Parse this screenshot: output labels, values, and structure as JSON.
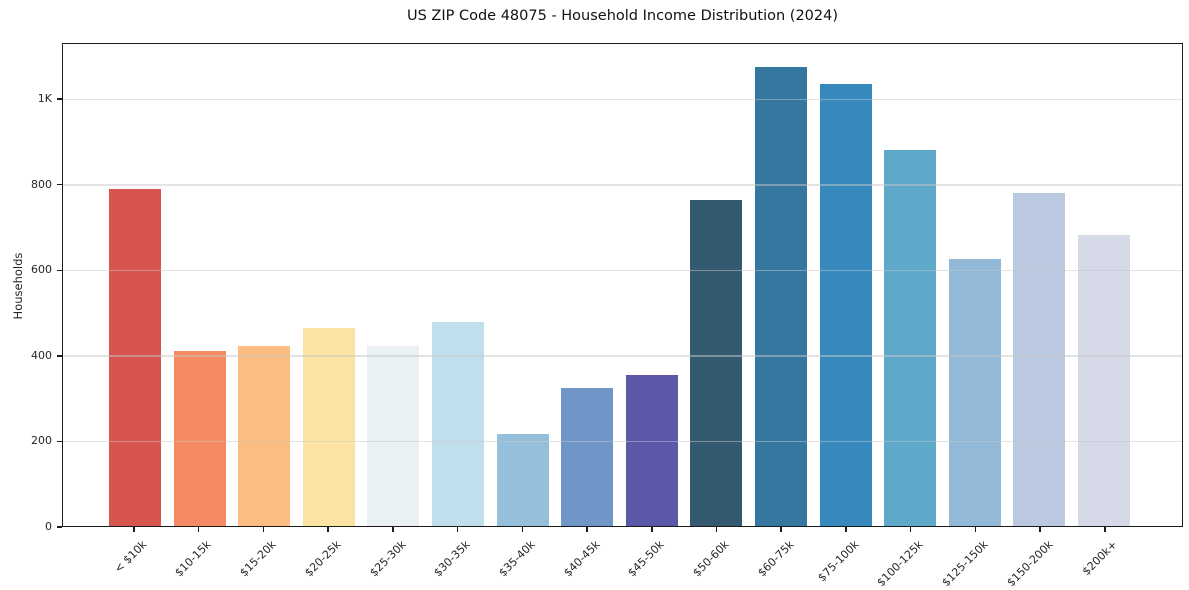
{
  "title": "US ZIP Code 48075 - Household Income Distribution (2024)",
  "chart_data": {
    "type": "bar",
    "title": "US ZIP Code 48075 - Household Income Distribution (2024)",
    "xlabel": "",
    "ylabel": "Households",
    "categories": [
      "< $10k",
      "$10-15k",
      "$15-20k",
      "$20-25k",
      "$25-30k",
      "$30-35k",
      "$35-40k",
      "$40-45k",
      "$45-50k",
      "$50-60k",
      "$60-75k",
      "$75-100k",
      "$100-125k",
      "$125-150k",
      "$150-200k",
      "$200k+"
    ],
    "values": [
      787,
      408,
      420,
      463,
      420,
      476,
      215,
      322,
      353,
      762,
      1072,
      1033,
      878,
      624,
      778,
      680
    ],
    "bar_colors": [
      "#d8544e",
      "#f58a62",
      "#fcbd80",
      "#fde3a3",
      "#e9f1f5",
      "#c0dfec",
      "#96bfdc",
      "#7095c7",
      "#5b57a9",
      "#345a71",
      "#35779f",
      "#3789bd",
      "#5ea8ca",
      "#93b9d9",
      "#bac9e0",
      "#d6d9e7"
    ],
    "ylim": [
      0,
      1131
    ],
    "yticks": [
      {
        "label": "0",
        "value": 0
      },
      {
        "label": "200",
        "value": 200
      },
      {
        "label": "400",
        "value": 400
      },
      {
        "label": "600",
        "value": 600
      },
      {
        "label": "800",
        "value": 800
      },
      {
        "label": "1K",
        "value": 1000
      }
    ],
    "grid": "horizontal",
    "legend": "none",
    "background": "#ffffff",
    "axis_color": "#1c1c1c"
  }
}
